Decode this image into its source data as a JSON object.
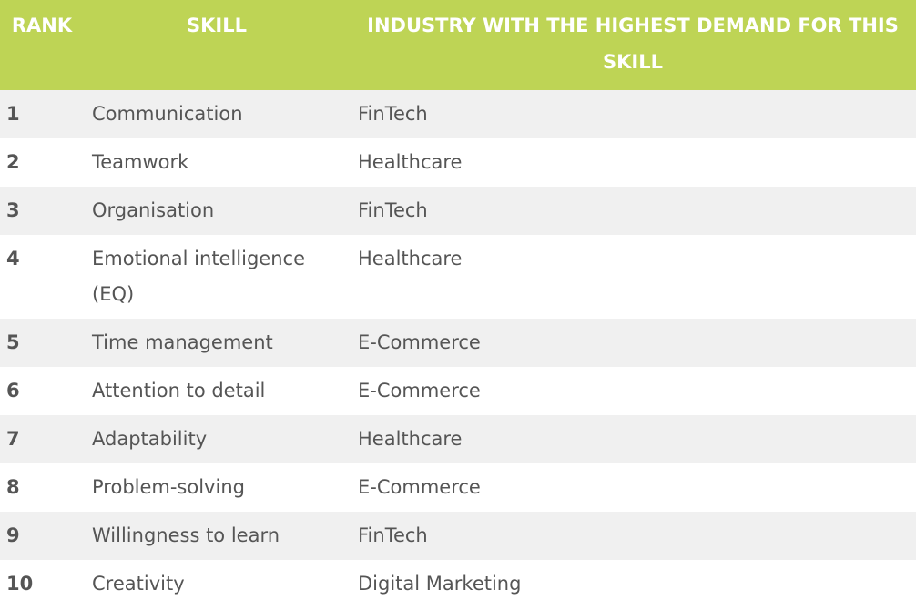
{
  "headers": {
    "rank": "RANK",
    "skill": "SKILL",
    "industry": "INDUSTRY WITH THE HIGHEST DEMAND FOR THIS SKILL"
  },
  "colors": {
    "header_bg": "#bed455",
    "header_text": "#ffffff",
    "row_alt_bg": "#f0f0f0",
    "body_text": "#555555"
  },
  "rows": [
    {
      "rank": "1",
      "skill": "Communication",
      "industry": "FinTech"
    },
    {
      "rank": "2",
      "skill": "Teamwork",
      "industry": "Healthcare"
    },
    {
      "rank": "3",
      "skill": "Organisation",
      "industry": "FinTech"
    },
    {
      "rank": "4",
      "skill": "Emotional intelligence (EQ)",
      "industry": "Healthcare"
    },
    {
      "rank": "5",
      "skill": "Time management",
      "industry": "E-Commerce"
    },
    {
      "rank": "6",
      "skill": "Attention to detail",
      "industry": "E-Commerce"
    },
    {
      "rank": "7",
      "skill": "Adaptability",
      "industry": "Healthcare"
    },
    {
      "rank": "8",
      "skill": "Problem-solving",
      "industry": "E-Commerce"
    },
    {
      "rank": "9",
      "skill": "Willingness to learn",
      "industry": "FinTech"
    },
    {
      "rank": "10",
      "skill": "Creativity",
      "industry": "Digital Marketing"
    }
  ]
}
